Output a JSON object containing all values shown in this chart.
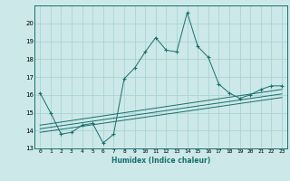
{
  "xlabel": "Humidex (Indice chaleur)",
  "ylabel": "",
  "background_color": "#cce8e8",
  "grid_color": "#aad4d4",
  "line_color": "#1a6e6e",
  "xlim": [
    -0.5,
    23.5
  ],
  "ylim": [
    13,
    21
  ],
  "yticks": [
    13,
    14,
    15,
    16,
    17,
    18,
    19,
    20
  ],
  "xticks": [
    0,
    1,
    2,
    3,
    4,
    5,
    6,
    7,
    8,
    9,
    10,
    11,
    12,
    13,
    14,
    15,
    16,
    17,
    18,
    19,
    20,
    21,
    22,
    23
  ],
  "main_line_x": [
    0,
    1,
    2,
    3,
    4,
    5,
    6,
    7,
    8,
    9,
    10,
    11,
    12,
    13,
    14,
    15,
    16,
    17,
    18,
    19,
    20,
    21,
    22,
    23
  ],
  "main_line_y": [
    16.1,
    15.0,
    13.8,
    13.9,
    14.3,
    14.4,
    13.3,
    13.8,
    16.9,
    17.5,
    18.4,
    19.2,
    18.5,
    18.4,
    20.6,
    18.7,
    18.1,
    16.6,
    16.1,
    15.8,
    16.0,
    16.3,
    16.5,
    16.5
  ],
  "reg_line1_x": [
    0,
    23
  ],
  "reg_line1_y": [
    14.3,
    16.3
  ],
  "reg_line2_x": [
    0,
    23
  ],
  "reg_line2_y": [
    14.1,
    16.05
  ],
  "reg_line3_x": [
    0,
    23
  ],
  "reg_line3_y": [
    13.9,
    15.85
  ]
}
